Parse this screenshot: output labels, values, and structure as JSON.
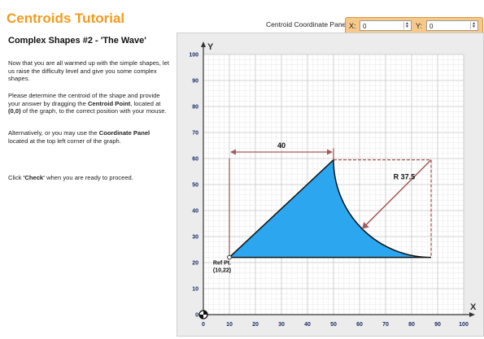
{
  "header": {
    "title": "Centroids Tutorial"
  },
  "lesson": {
    "subtitle": "Complex Shapes #2 - 'The Wave'",
    "p1": "Now that you are all warmed up with the simple shapes, let us raise the difficulty level and give you some complex shapes.",
    "p2_a": "Please determine the centroid of the shape and provide your answer by dragging the ",
    "p2_b": "Centroid Point",
    "p2_c": ", located at ",
    "p2_d": "(0,0)",
    "p2_e": " of the graph, to the correct position with your mouse.",
    "p3_a": "Alternatively, or you may use the ",
    "p3_b": "Coordinate Panel",
    "p3_c": " located at the top left corner of the graph.",
    "p4_a": "Click ",
    "p4_b": "'Check'",
    "p4_c": " when you are ready to proceed."
  },
  "coord_panel": {
    "label": "Centroid Coordinate Panel:",
    "x_label": "X:",
    "y_label": "Y:",
    "x_value": "0",
    "y_value": "0"
  },
  "graph": {
    "x_axis_label": "X",
    "y_axis_label": "Y",
    "x_ticks": [
      "0",
      "10",
      "20",
      "30",
      "40",
      "50",
      "60",
      "70",
      "80",
      "90",
      "100"
    ],
    "y_ticks": [
      "0",
      "10",
      "20",
      "30",
      "40",
      "50",
      "60",
      "70",
      "80",
      "90",
      "100"
    ],
    "x_range": [
      0,
      100
    ],
    "y_range": [
      0,
      100
    ],
    "shape_color": "#2ba6ef",
    "dimension_color": "#a65a5a",
    "shape_points": {
      "ref": [
        10,
        22
      ],
      "apex": [
        50,
        59.5
      ],
      "arc_end": [
        87.5,
        22
      ],
      "arc_center": [
        87.5,
        59.5
      ],
      "radius": 37.5
    },
    "dim_width_label": "40",
    "dim_radius_label": "R 37.5",
    "ref_label_line1": "Ref Pt.",
    "ref_label_line2": "(10,22)",
    "centroid_point": [
      0,
      0
    ]
  }
}
